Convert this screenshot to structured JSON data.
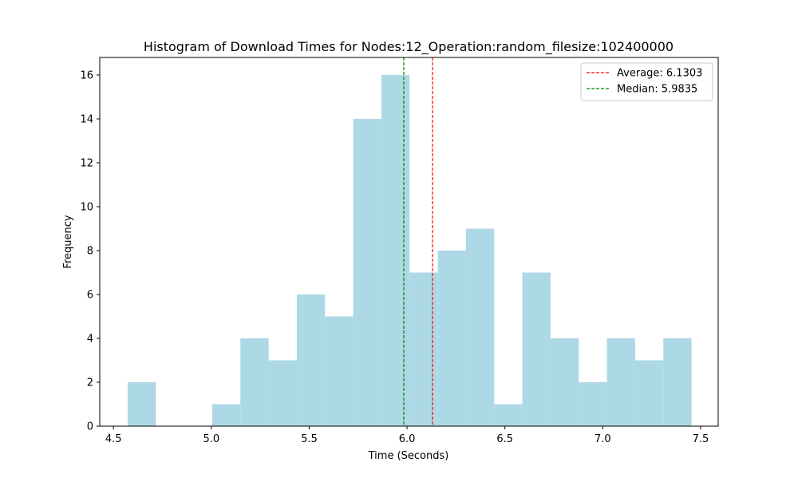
{
  "chart_data": {
    "type": "bar",
    "title": "Histogram of Download Times for Nodes:12_Operation:random_filesize:102400000",
    "xlabel": "Time (Seconds)",
    "ylabel": "Frequency",
    "xlim": [
      4.43,
      7.59
    ],
    "ylim": [
      0,
      16.8
    ],
    "bin_start": 4.5725,
    "bin_width": 0.14406,
    "counts": [
      2,
      0,
      0,
      1,
      4,
      3,
      6,
      5,
      14,
      16,
      7,
      8,
      9,
      1,
      7,
      4,
      2,
      4,
      3,
      4
    ],
    "bar_color": "#add8e6",
    "xticks": [
      4.5,
      5.0,
      5.5,
      6.0,
      6.5,
      7.0,
      7.5
    ],
    "xtick_labels": [
      "4.5",
      "5.0",
      "5.5",
      "6.0",
      "6.5",
      "7.0",
      "7.5"
    ],
    "yticks": [
      0,
      2,
      4,
      6,
      8,
      10,
      12,
      14,
      16
    ],
    "ytick_labels": [
      "0",
      "2",
      "4",
      "6",
      "8",
      "10",
      "12",
      "14",
      "16"
    ],
    "reference_lines": [
      {
        "name": "Average",
        "label": "Average: 6.1303",
        "value": 6.1303,
        "color": "#ff0000",
        "style": "dashed"
      },
      {
        "name": "Median",
        "label": "Median: 5.9835",
        "value": 5.9835,
        "color": "#008000",
        "style": "dashed"
      }
    ],
    "legend_position": "top-right",
    "grid": false
  }
}
